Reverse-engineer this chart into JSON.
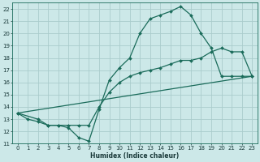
{
  "title": "",
  "xlabel": "Humidex (Indice chaleur)",
  "ylabel": "",
  "bg_color": "#cce8e8",
  "line_color": "#1a6b5a",
  "grid_color": "#aacccc",
  "xlim": [
    -0.5,
    23.5
  ],
  "ylim": [
    11,
    22.5
  ],
  "yticks": [
    11,
    12,
    13,
    14,
    15,
    16,
    17,
    18,
    19,
    20,
    21,
    22
  ],
  "xticks": [
    0,
    1,
    2,
    3,
    4,
    5,
    6,
    7,
    8,
    9,
    10,
    11,
    12,
    13,
    14,
    15,
    16,
    17,
    18,
    19,
    20,
    21,
    22,
    23
  ],
  "line1_x": [
    0,
    1,
    2,
    3,
    4,
    5,
    6,
    7,
    8,
    9,
    10,
    11,
    12,
    13,
    14,
    15,
    16,
    17,
    18,
    19,
    20,
    21,
    22,
    23
  ],
  "line1_y": [
    13.5,
    13.0,
    12.8,
    12.5,
    12.5,
    12.3,
    11.5,
    11.2,
    13.8,
    16.2,
    17.2,
    18.0,
    20.0,
    21.2,
    21.5,
    21.8,
    22.2,
    21.5,
    20.0,
    18.8,
    16.5,
    16.5,
    16.5,
    16.5
  ],
  "line2_x": [
    0,
    2,
    3,
    4,
    5,
    6,
    7,
    8,
    9,
    10,
    11,
    12,
    13,
    14,
    15,
    16,
    17,
    18,
    19,
    20,
    21,
    22,
    23
  ],
  "line2_y": [
    13.5,
    13.0,
    12.5,
    12.5,
    12.5,
    12.5,
    12.5,
    14.0,
    15.2,
    16.0,
    16.5,
    16.8,
    17.0,
    17.2,
    17.5,
    17.8,
    17.8,
    18.0,
    18.5,
    18.8,
    18.5,
    18.5,
    16.5
  ],
  "line3_x": [
    0,
    23
  ],
  "line3_y": [
    13.5,
    16.5
  ],
  "tick_fontsize": 5.0,
  "xlabel_fontsize": 5.5,
  "marker_size": 2.0,
  "line_width": 0.9
}
